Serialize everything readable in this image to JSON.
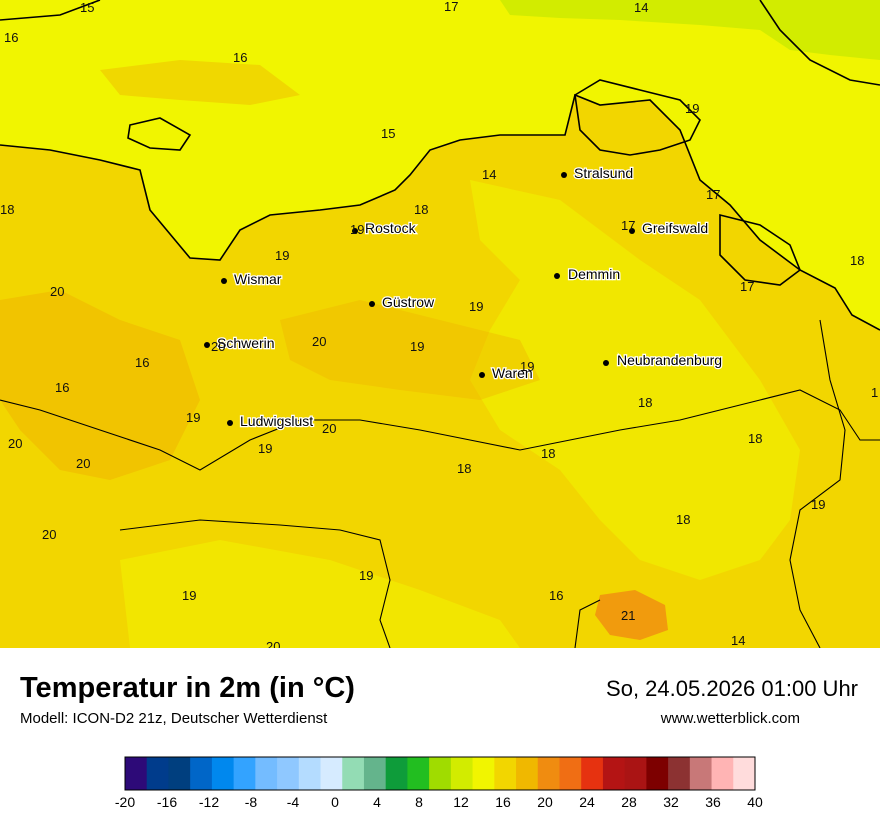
{
  "map": {
    "colors": {
      "sea": "#f1f500",
      "land": "#f2d600",
      "warm_patch": "#f0b800",
      "hot_spot": "#f08c10",
      "green_patch": "#d2ec00"
    },
    "cities": [
      {
        "name": "Stralsund"
      },
      {
        "name": "Greifswald"
      },
      {
        "name": "Rostock"
      },
      {
        "name": "Demmin"
      },
      {
        "name": "Wismar"
      },
      {
        "name": "Güstrow"
      },
      {
        "name": "Schwerin"
      },
      {
        "name": "Neubrandenburg"
      },
      {
        "name": "Waren"
      },
      {
        "name": "Ludwigslust"
      }
    ],
    "values": [
      "15",
      "17",
      "14",
      "16",
      "16",
      "15",
      "19",
      "14",
      "17",
      "18",
      "17",
      "19",
      "18",
      "19",
      "17",
      "18",
      "20",
      "19",
      "20",
      "16",
      "16",
      "19",
      "19",
      "18",
      "20",
      "19",
      "20",
      "18",
      "18",
      "20",
      "18",
      "20",
      "19",
      "19",
      "16",
      "18",
      "21",
      "14",
      "20",
      "19",
      "20",
      "19",
      "1"
    ]
  },
  "footer": {
    "title": "Temperatur in 2m (in °C)",
    "model": "Modell: ICON-D2 21z, Deutscher Wetterdienst",
    "datetime": "So, 24.05.2026 01:00 Uhr",
    "website": "www.wetterblick.com"
  },
  "legend": {
    "ticks": [
      "-20",
      "-16",
      "-12",
      "-8",
      "-4",
      "0",
      "4",
      "8",
      "12",
      "16",
      "20",
      "24",
      "28",
      "32",
      "36",
      "40"
    ],
    "colors": [
      "#2d0a78",
      "#003c8c",
      "#003f7f",
      "#0066c8",
      "#0088ee",
      "#33a3ff",
      "#74bcff",
      "#8fc8ff",
      "#b4dcff",
      "#d6ebff",
      "#93dcb4",
      "#64b48c",
      "#0e9c3a",
      "#22be20",
      "#a0dc00",
      "#d2ec00",
      "#f1f500",
      "#f2d600",
      "#f0b800",
      "#f08c10",
      "#f06e14",
      "#e63210",
      "#b41414",
      "#aa1414",
      "#7d0000",
      "#8c3232",
      "#c87878",
      "#ffb4b4",
      "#ffdcdc"
    ]
  }
}
